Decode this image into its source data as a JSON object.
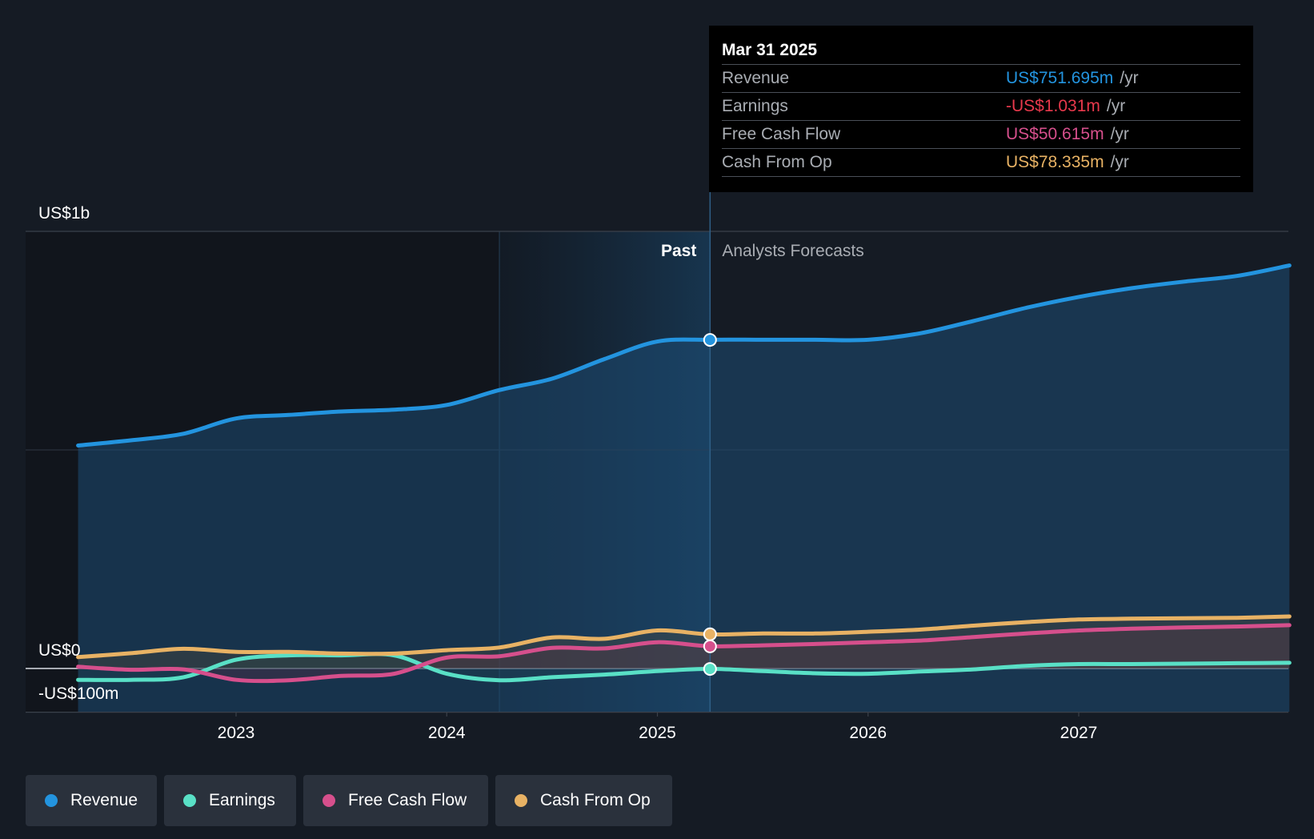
{
  "colors": {
    "background": "#151b24",
    "revenue": "#2394df",
    "earnings": "#59e0c6",
    "free_cash_flow": "#d64f8c",
    "cash_from_op": "#e8b264",
    "grid": "#3b414b"
  },
  "tooltip": {
    "date": "Mar 31 2025",
    "rows": [
      {
        "label": "Revenue",
        "value": "US$751.695m",
        "unit": "/yr",
        "color": "#2394df"
      },
      {
        "label": "Earnings",
        "value": "-US$1.031m",
        "unit": "/yr",
        "color": "#e8394c"
      },
      {
        "label": "Free Cash Flow",
        "value": "US$50.615m",
        "unit": "/yr",
        "color": "#d64f8c"
      },
      {
        "label": "Cash From Op",
        "value": "US$78.335m",
        "unit": "/yr",
        "color": "#e8b264"
      }
    ]
  },
  "legend": [
    {
      "label": "Revenue",
      "color": "#2394df"
    },
    {
      "label": "Earnings",
      "color": "#59e0c6"
    },
    {
      "label": "Free Cash Flow",
      "color": "#d64f8c"
    },
    {
      "label": "Cash From Op",
      "color": "#e8b264"
    }
  ],
  "chart_data": {
    "type": "line",
    "y_unit": "US$ millions",
    "ylim": [
      -100,
      1000
    ],
    "y_tick_labels": [
      {
        "value": 1000,
        "label": "US$1b"
      },
      {
        "value": 0,
        "label": "US$0"
      },
      {
        "value": -100,
        "label": "-US$100m"
      }
    ],
    "xlim": [
      2022.0,
      2028.0
    ],
    "x_ticks": [
      2023,
      2024,
      2025,
      2026,
      2027
    ],
    "x_tick_labels": [
      "2023",
      "2024",
      "2025",
      "2026",
      "2027"
    ],
    "past_label": "Past",
    "forecast_label": "Analysts Forecasts",
    "past_shade_start": 2024.25,
    "divider_x": 2025.25,
    "series": [
      {
        "name": "Revenue",
        "points": [
          [
            2022.25,
            510
          ],
          [
            2022.5,
            522
          ],
          [
            2022.75,
            537
          ],
          [
            2023.0,
            572
          ],
          [
            2023.25,
            580
          ],
          [
            2023.5,
            588
          ],
          [
            2023.75,
            592
          ],
          [
            2024.0,
            603
          ],
          [
            2024.25,
            637
          ],
          [
            2024.5,
            663
          ],
          [
            2024.75,
            708
          ],
          [
            2025.0,
            748
          ],
          [
            2025.25,
            752
          ],
          [
            2025.5,
            752
          ],
          [
            2025.75,
            752
          ],
          [
            2026.0,
            752
          ],
          [
            2026.25,
            767
          ],
          [
            2026.5,
            795
          ],
          [
            2026.75,
            825
          ],
          [
            2027.0,
            850
          ],
          [
            2027.25,
            870
          ],
          [
            2027.5,
            885
          ],
          [
            2027.75,
            898
          ],
          [
            2028.0,
            922
          ]
        ]
      },
      {
        "name": "Earnings",
        "points": [
          [
            2022.25,
            -26
          ],
          [
            2022.5,
            -26
          ],
          [
            2022.75,
            -20
          ],
          [
            2023.0,
            20
          ],
          [
            2023.25,
            30
          ],
          [
            2023.5,
            30
          ],
          [
            2023.75,
            30
          ],
          [
            2024.0,
            -12
          ],
          [
            2024.25,
            -27
          ],
          [
            2024.5,
            -20
          ],
          [
            2024.75,
            -14
          ],
          [
            2025.0,
            -6
          ],
          [
            2025.25,
            -1
          ],
          [
            2025.5,
            -6
          ],
          [
            2025.75,
            -11
          ],
          [
            2026.0,
            -12
          ],
          [
            2026.25,
            -7
          ],
          [
            2026.5,
            -2
          ],
          [
            2026.75,
            6
          ],
          [
            2027.0,
            10
          ],
          [
            2027.25,
            10
          ],
          [
            2027.5,
            11
          ],
          [
            2027.75,
            12
          ],
          [
            2028.0,
            13
          ]
        ]
      },
      {
        "name": "Free Cash Flow",
        "points": [
          [
            2022.25,
            4
          ],
          [
            2022.5,
            -3
          ],
          [
            2022.75,
            -2
          ],
          [
            2023.0,
            -26
          ],
          [
            2023.25,
            -27
          ],
          [
            2023.5,
            -17
          ],
          [
            2023.75,
            -12
          ],
          [
            2024.0,
            25
          ],
          [
            2024.25,
            28
          ],
          [
            2024.5,
            47
          ],
          [
            2024.75,
            46
          ],
          [
            2025.0,
            60
          ],
          [
            2025.25,
            51
          ],
          [
            2025.5,
            53
          ],
          [
            2025.75,
            56
          ],
          [
            2026.0,
            60
          ],
          [
            2026.25,
            64
          ],
          [
            2026.5,
            72
          ],
          [
            2026.75,
            80
          ],
          [
            2027.0,
            87
          ],
          [
            2027.25,
            91
          ],
          [
            2027.5,
            94
          ],
          [
            2027.75,
            96
          ],
          [
            2028.0,
            99
          ]
        ]
      },
      {
        "name": "Cash From Op",
        "points": [
          [
            2022.25,
            26
          ],
          [
            2022.5,
            35
          ],
          [
            2022.75,
            45
          ],
          [
            2023.0,
            38
          ],
          [
            2023.25,
            38
          ],
          [
            2023.5,
            34
          ],
          [
            2023.75,
            34
          ],
          [
            2024.0,
            42
          ],
          [
            2024.25,
            48
          ],
          [
            2024.5,
            71
          ],
          [
            2024.75,
            68
          ],
          [
            2025.0,
            87
          ],
          [
            2025.25,
            78
          ],
          [
            2025.5,
            80
          ],
          [
            2025.75,
            80
          ],
          [
            2026.0,
            84
          ],
          [
            2026.25,
            89
          ],
          [
            2026.5,
            98
          ],
          [
            2026.75,
            106
          ],
          [
            2027.0,
            112
          ],
          [
            2027.25,
            114
          ],
          [
            2027.5,
            115
          ],
          [
            2027.75,
            116
          ],
          [
            2028.0,
            119
          ]
        ]
      }
    ],
    "highlight_x": 2025.25,
    "highlight_values": {
      "Revenue": 751.695,
      "Earnings": -1.031,
      "Free Cash Flow": 50.615,
      "Cash From Op": 78.335
    }
  }
}
